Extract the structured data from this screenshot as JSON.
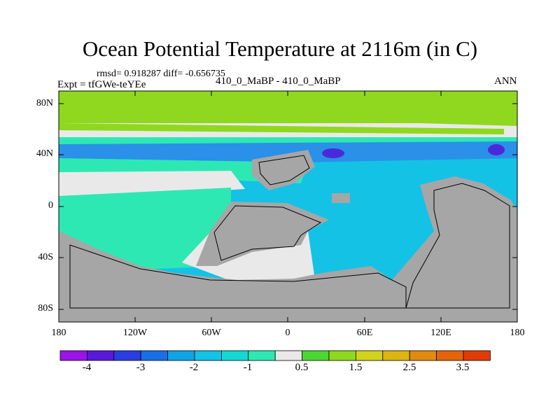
{
  "title": "Ocean Potential Temperature at 2116m (in C)",
  "stats_text": "rmsd= 0.918287 diff= -0.656735",
  "experiment_label": "Expt = tfGWe-teYEe",
  "runs_label": "410_0_MaBP - 410_0_MaBP",
  "season_label": "ANN",
  "y_ticks": [
    "80N",
    "40N",
    "0",
    "40S",
    "80S"
  ],
  "x_ticks": [
    "180",
    "120W",
    "60W",
    "0",
    "60E",
    "120E",
    "180"
  ],
  "colorbar": {
    "colors": [
      "#9a14e6",
      "#5a18d8",
      "#2a3ee0",
      "#1a6ee6",
      "#12a2e6",
      "#14c2e6",
      "#16d8d2",
      "#2ee8b4",
      "#e9e9e9",
      "#4cd632",
      "#90d820",
      "#d2d21c",
      "#dcb414",
      "#e08a10",
      "#e4640c",
      "#e03c08"
    ],
    "labels": [
      "-4",
      "-3",
      "-2",
      "-1",
      "0.5",
      "1.5",
      "2.5",
      "3.5"
    ]
  },
  "colors": {
    "land": "#a6a6a6",
    "neutral": "#e9e9e9",
    "cyan": "#14c2e6",
    "teal": "#2ee8b4",
    "green": "#90d820",
    "blue": "#2a90e8",
    "deep_blue": "#4a2ad8"
  }
}
